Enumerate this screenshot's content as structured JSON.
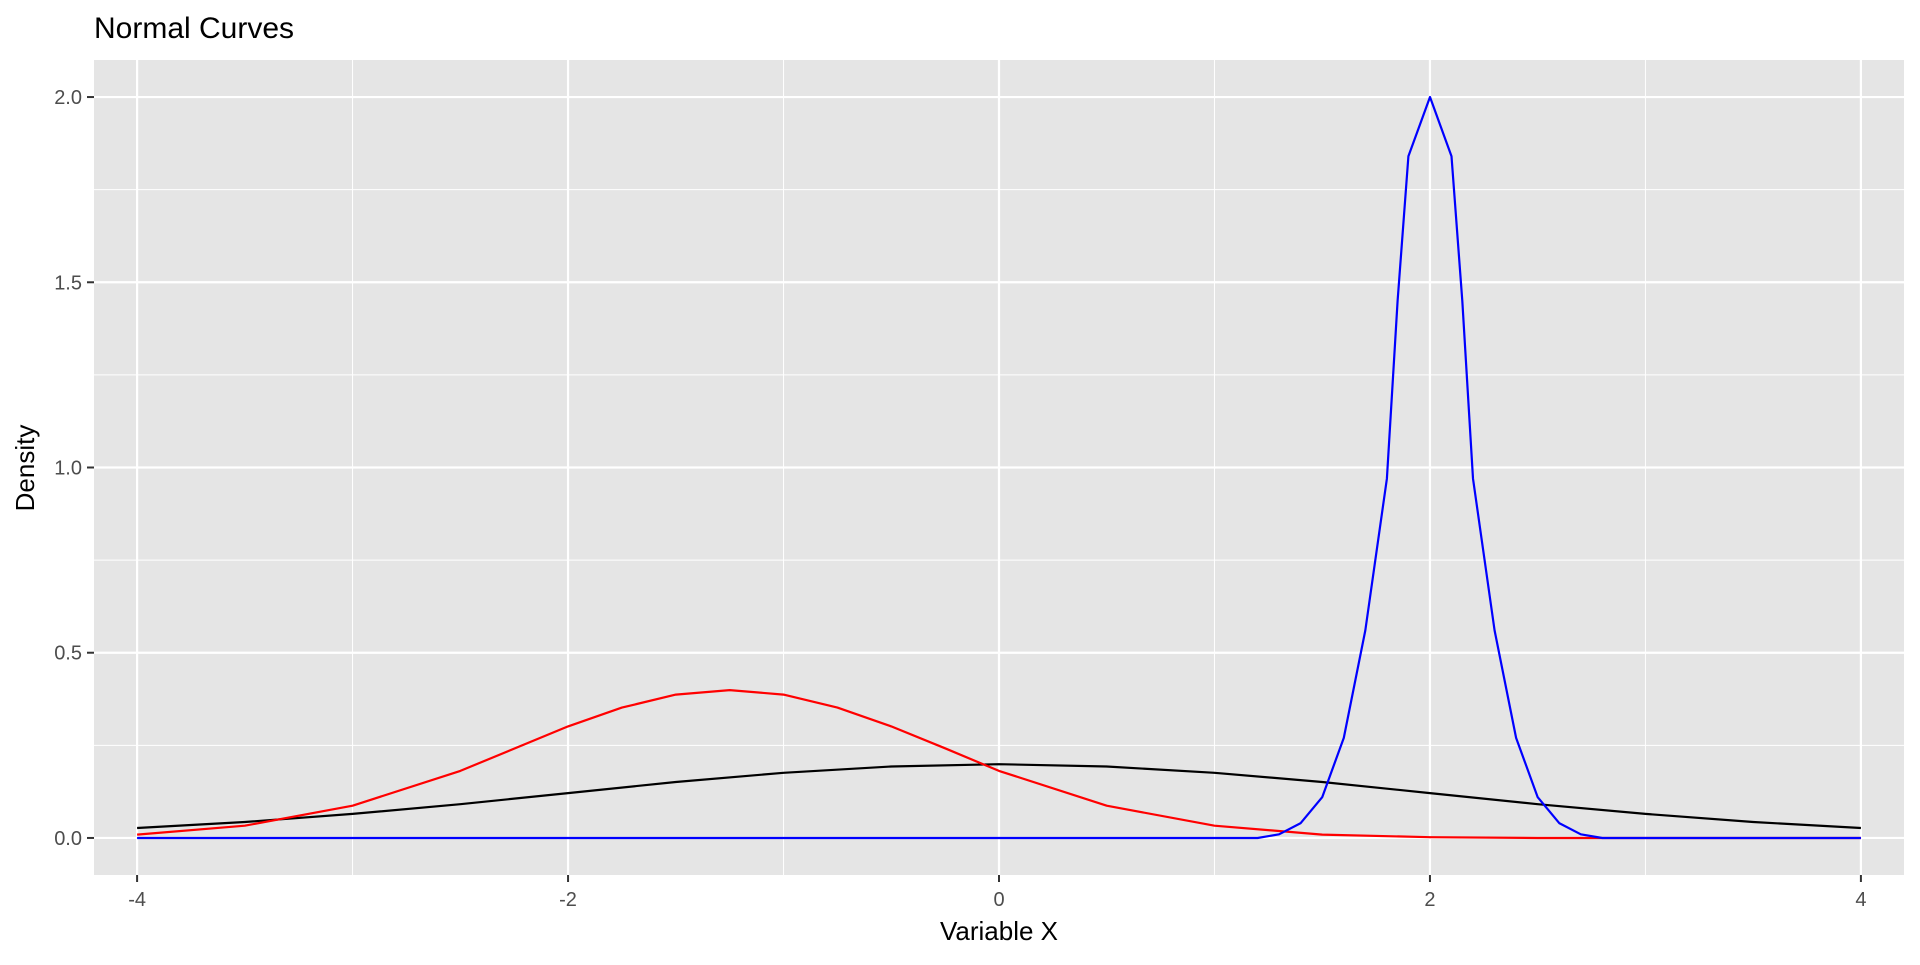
{
  "chart_data": {
    "type": "line",
    "title": "Normal Curves",
    "xlabel": "Variable X",
    "ylabel": "Density",
    "xlim": [
      -4.2,
      4.2
    ],
    "ylim": [
      -0.1,
      2.1
    ],
    "x_ticks": [
      -4,
      -2,
      0,
      2,
      4
    ],
    "x_tick_labels": [
      "-4",
      "-2",
      "0",
      "2",
      "4"
    ],
    "y_ticks": [
      0.0,
      0.5,
      1.0,
      1.5,
      2.0
    ],
    "y_tick_labels": [
      "0.0",
      "0.5",
      "1.0",
      "1.5",
      "2.0"
    ],
    "grid": true,
    "panel_background": "#e5e5e5",
    "grid_color": "#ffffff",
    "legend": "none",
    "series": [
      {
        "color": "#000000",
        "x": [
          -4.0,
          -3.5,
          -3.0,
          -2.5,
          -2.0,
          -1.5,
          -1.0,
          -0.5,
          0.0,
          0.5,
          1.0,
          1.5,
          2.0,
          2.5,
          3.0,
          3.5,
          4.0
        ],
        "y": [
          0.027,
          0.043,
          0.065,
          0.091,
          0.121,
          0.151,
          0.176,
          0.193,
          0.199,
          0.193,
          0.176,
          0.151,
          0.121,
          0.091,
          0.065,
          0.043,
          0.027
        ]
      },
      {
        "color": "#ff0000",
        "x": [
          -4.0,
          -3.5,
          -3.0,
          -2.5,
          -2.0,
          -1.75,
          -1.5,
          -1.25,
          -1.0,
          -0.75,
          -0.5,
          -0.25,
          0.0,
          0.5,
          1.0,
          1.5,
          2.0,
          2.5,
          3.0,
          3.5,
          4.0
        ],
        "y": [
          0.009,
          0.033,
          0.087,
          0.181,
          0.301,
          0.352,
          0.387,
          0.399,
          0.387,
          0.352,
          0.301,
          0.242,
          0.181,
          0.087,
          0.033,
          0.009,
          0.002,
          0.0,
          0.0,
          0.0,
          0.0
        ]
      },
      {
        "color": "#0000ff",
        "x": [
          -4.0,
          1.0,
          1.2,
          1.3,
          1.4,
          1.5,
          1.6,
          1.7,
          1.8,
          1.85,
          1.9,
          2.0,
          2.1,
          2.15,
          2.2,
          2.3,
          2.4,
          2.5,
          2.6,
          2.7,
          2.8,
          3.0,
          4.0
        ],
        "y": [
          0.0,
          0.0,
          0.0,
          0.01,
          0.04,
          0.11,
          0.27,
          0.56,
          0.97,
          1.45,
          1.84,
          2.0,
          1.84,
          1.45,
          0.97,
          0.56,
          0.27,
          0.11,
          0.04,
          0.01,
          0.0,
          0.0,
          0.0
        ]
      }
    ]
  }
}
